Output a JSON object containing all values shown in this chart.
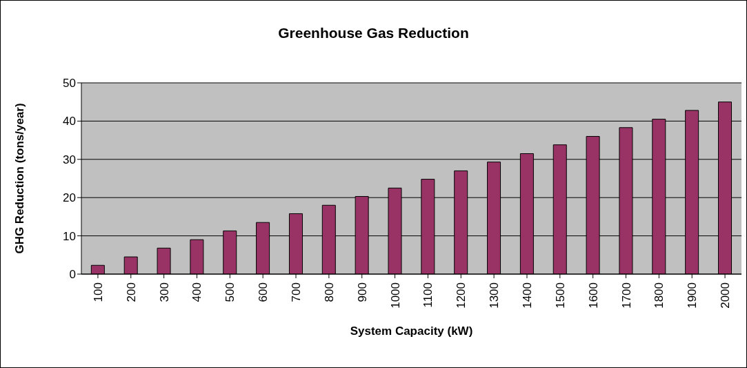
{
  "chart_data": {
    "type": "bar",
    "title": "Greenhouse Gas Reduction",
    "xlabel": "System Capacity (kW)",
    "ylabel": "GHG Reduction (tons/year)",
    "categories": [
      "100",
      "200",
      "300",
      "400",
      "500",
      "600",
      "700",
      "800",
      "900",
      "1000",
      "1100",
      "1200",
      "1300",
      "1400",
      "1500",
      "1600",
      "1700",
      "1800",
      "1900",
      "2000"
    ],
    "values": [
      2.3,
      4.5,
      6.8,
      9,
      11.3,
      13.5,
      15.8,
      18,
      20.3,
      22.5,
      24.8,
      27,
      29.3,
      31.5,
      33.8,
      36,
      38.3,
      40.5,
      42.8,
      45
    ],
    "color": "#993366",
    "ylim": [
      0,
      50
    ],
    "yticks": [
      0,
      10,
      20,
      30,
      40,
      50
    ],
    "grid": "y"
  }
}
